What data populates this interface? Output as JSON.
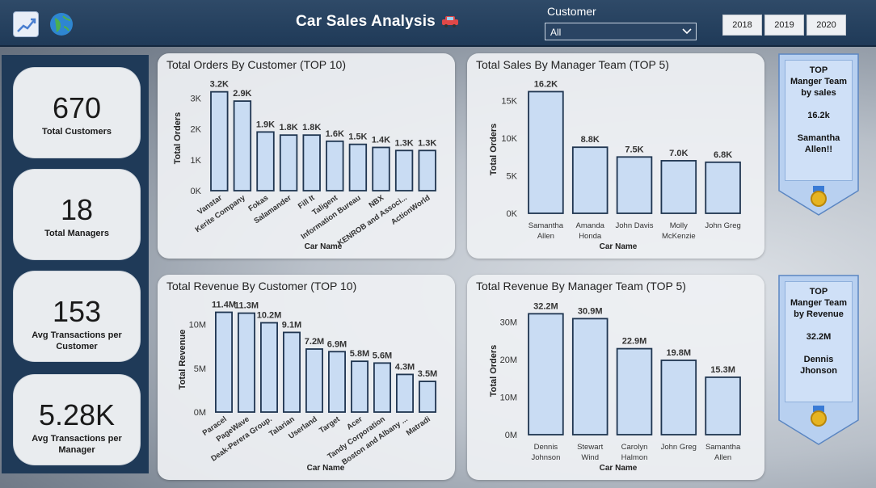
{
  "header": {
    "title": "Car Sales Analysis",
    "customer_label": "Customer",
    "customer_selected": "All",
    "years": [
      "2018",
      "2019",
      "2020"
    ]
  },
  "kpis": [
    {
      "value": "670",
      "label": "Total Customers"
    },
    {
      "value": "18",
      "label": "Total Managers"
    },
    {
      "value": "153",
      "label": "Avg Transactions per Customer"
    },
    {
      "value": "5.28K",
      "label": "Avg Transactions per Manager"
    }
  ],
  "cards": {
    "orders_by_customer": {
      "title": "Total Orders By Customer (TOP 10)"
    },
    "sales_by_manager": {
      "title": "Total Sales By Manager Team (TOP 5)"
    },
    "revenue_by_customer": {
      "title": "Total Revenue By Customer (TOP 10)"
    },
    "revenue_by_manager": {
      "title": "Total Revenue By Manager Team (TOP 5)"
    }
  },
  "badges": [
    {
      "line1": "TOP",
      "line2": "Manger Team",
      "line3": "by sales",
      "value": "16.2k",
      "name1": "Samantha",
      "name2": "Allen!!"
    },
    {
      "line1": "TOP",
      "line2": "Manger Team",
      "line3": "by Revenue",
      "value": "32.2M",
      "name1": "Dennis",
      "name2": "Jhonson"
    }
  ],
  "colors": {
    "bar_fill": "#c9dcf3",
    "bar_stroke": "#1f3550",
    "header": "#1f3a58"
  },
  "chart_data": [
    {
      "type": "bar",
      "title": "Total Orders By Customer (TOP 10)",
      "xlabel": "Car Name",
      "ylabel": "Total Orders",
      "categories": [
        "Vanstar",
        "Kerite Company",
        "Fokas",
        "Salamander",
        "Fill It",
        "Taligent",
        "Information Bureau",
        "NBX",
        "KENROB and Associ...",
        "ActionWorld"
      ],
      "values": [
        3200,
        2900,
        1900,
        1800,
        1800,
        1600,
        1500,
        1400,
        1300,
        1300
      ],
      "data_labels": [
        "3.2K",
        "2.9K",
        "1.9K",
        "1.8K",
        "1.8K",
        "1.6K",
        "1.5K",
        "1.4K",
        "1.3K",
        "1.3K"
      ],
      "yticks": [
        0,
        1000,
        2000,
        3000
      ],
      "ytick_labels": [
        "0K",
        "1K",
        "2K",
        "3K"
      ],
      "ylim": [
        0,
        3400
      ]
    },
    {
      "type": "bar",
      "title": "Total Sales By Manager Team (TOP 5)",
      "xlabel": "Car Name",
      "ylabel": "Total Orders",
      "categories": [
        "Samantha Allen",
        "Amanda Honda",
        "John Davis",
        "Molly McKenzie",
        "John Greg"
      ],
      "values": [
        16200,
        8800,
        7500,
        7000,
        6800
      ],
      "data_labels": [
        "16.2K",
        "8.8K",
        "7.5K",
        "7.0K",
        "6.8K"
      ],
      "yticks": [
        0,
        5000,
        10000,
        15000
      ],
      "ytick_labels": [
        "0K",
        "5K",
        "10K",
        "15K"
      ],
      "ylim": [
        0,
        17000
      ]
    },
    {
      "type": "bar",
      "title": "Total Revenue By Customer (TOP 10)",
      "xlabel": "Car Name",
      "ylabel": "Total Revenue",
      "categories": [
        "Paracel",
        "PageWave",
        "Deak-Perera Group.",
        "Talarian",
        "Userland",
        "Target",
        "Acer",
        "Tandy Corporation",
        "Boston and Albany ...",
        "Matradi"
      ],
      "values": [
        11.4,
        11.3,
        10.2,
        9.1,
        7.2,
        6.9,
        5.8,
        5.6,
        4.3,
        3.5
      ],
      "data_labels": [
        "11.4M",
        "11.3M",
        "10.2M",
        "9.1M",
        "7.2M",
        "6.9M",
        "5.8M",
        "5.6M",
        "4.3M",
        "3.5M"
      ],
      "yticks": [
        0,
        5,
        10
      ],
      "ytick_labels": [
        "0M",
        "5M",
        "10M"
      ],
      "ylim": [
        0,
        12
      ]
    },
    {
      "type": "bar",
      "title": "Total Revenue By Manager Team (TOP 5)",
      "xlabel": "Car Name",
      "ylabel": "Total Orders",
      "categories": [
        "Dennis Johnson",
        "Stewart Wind",
        "Carolyn Halmon",
        "John Greg",
        "Samantha Allen"
      ],
      "values": [
        32.2,
        30.9,
        22.9,
        19.8,
        15.3
      ],
      "data_labels": [
        "32.2M",
        "30.9M",
        "22.9M",
        "19.8M",
        "15.3M"
      ],
      "yticks": [
        0,
        10,
        20,
        30
      ],
      "ytick_labels": [
        "0M",
        "10M",
        "20M",
        "30M"
      ],
      "ylim": [
        0,
        34
      ]
    }
  ]
}
